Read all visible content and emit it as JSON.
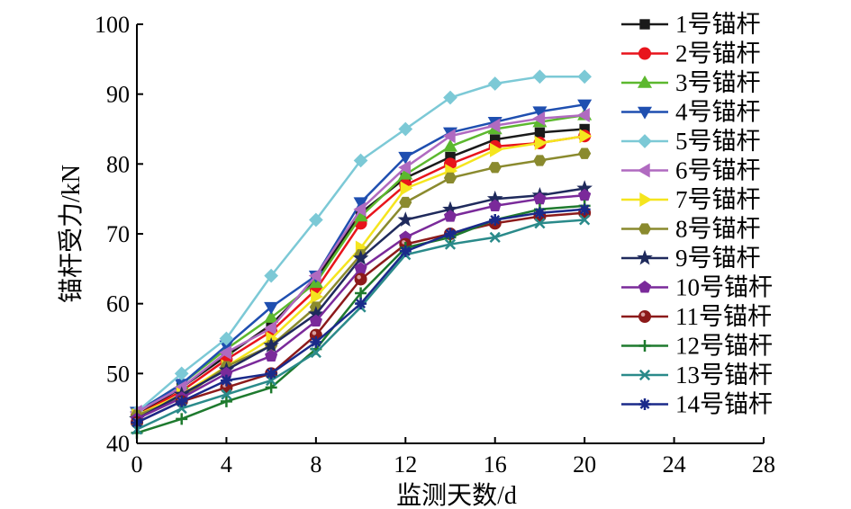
{
  "chart_data": {
    "type": "line",
    "xlabel": "监测天数/d",
    "ylabel": "锚杆受力/kN",
    "xlim": [
      0,
      28
    ],
    "ylim": [
      40,
      100
    ],
    "xticks": [
      0,
      4,
      8,
      12,
      16,
      20,
      24,
      28
    ],
    "yticks": [
      40,
      50,
      60,
      70,
      80,
      90,
      100
    ],
    "grid": false,
    "legend": "right",
    "x": [
      0,
      2,
      4,
      6,
      8,
      10,
      12,
      14,
      16,
      18,
      20
    ],
    "series": [
      {
        "name": "1号锚杆",
        "color": "#1a1a1a",
        "marker": "square",
        "values": [
          44.0,
          48.0,
          52.5,
          57.0,
          63.5,
          73.0,
          78.0,
          81.0,
          83.5,
          84.5,
          85.0
        ]
      },
      {
        "name": "2号锚杆",
        "color": "#e8141c",
        "marker": "circle",
        "values": [
          44.0,
          47.5,
          52.0,
          56.0,
          62.0,
          71.5,
          77.0,
          80.0,
          82.5,
          83.0,
          84.0
        ]
      },
      {
        "name": "3号锚杆",
        "color": "#5cb82e",
        "marker": "triangle-up",
        "values": [
          44.5,
          48.5,
          53.5,
          58.0,
          63.0,
          72.5,
          78.5,
          82.5,
          85.0,
          86.0,
          87.0
        ]
      },
      {
        "name": "4号锚杆",
        "color": "#1f4fb0",
        "marker": "triangle-down",
        "values": [
          44.5,
          48.5,
          54.0,
          59.5,
          64.0,
          74.5,
          81.0,
          84.5,
          86.0,
          87.5,
          88.5
        ]
      },
      {
        "name": "5号锚杆",
        "color": "#7cc9d6",
        "marker": "diamond",
        "values": [
          44.5,
          50.0,
          55.0,
          64.0,
          72.0,
          80.5,
          85.0,
          89.5,
          91.5,
          92.5,
          92.5
        ]
      },
      {
        "name": "6号锚杆",
        "color": "#b06ac0",
        "marker": "triangle-left",
        "values": [
          44.5,
          48.0,
          53.0,
          56.5,
          64.0,
          73.5,
          79.5,
          84.0,
          85.5,
          86.5,
          87.0
        ]
      },
      {
        "name": "7号锚杆",
        "color": "#f5e51e",
        "marker": "triangle-right",
        "values": [
          44.0,
          47.0,
          51.0,
          55.0,
          61.0,
          68.0,
          76.5,
          79.0,
          82.0,
          83.0,
          84.0
        ]
      },
      {
        "name": "8号锚杆",
        "color": "#8a8a2e",
        "marker": "hexagon",
        "values": [
          44.0,
          46.5,
          51.0,
          54.0,
          59.5,
          67.0,
          74.5,
          78.0,
          79.5,
          80.5,
          81.5
        ]
      },
      {
        "name": "9号锚杆",
        "color": "#1f2a5c",
        "marker": "star",
        "values": [
          43.5,
          47.0,
          50.5,
          54.0,
          58.5,
          66.5,
          72.0,
          73.5,
          75.0,
          75.5,
          76.5
        ]
      },
      {
        "name": "10号锚杆",
        "color": "#7a2a9a",
        "marker": "pentagon",
        "values": [
          43.5,
          46.5,
          50.0,
          52.5,
          57.5,
          65.0,
          69.5,
          72.5,
          74.0,
          75.0,
          75.5
        ]
      },
      {
        "name": "11号锚杆",
        "color": "#8c1a1a",
        "marker": "ball",
        "values": [
          43.0,
          46.0,
          48.0,
          50.0,
          55.5,
          63.5,
          68.5,
          70.0,
          71.5,
          72.5,
          73.0
        ]
      },
      {
        "name": "12号锚杆",
        "color": "#1e7a2e",
        "marker": "plus",
        "values": [
          41.5,
          43.5,
          46.0,
          48.0,
          53.5,
          61.5,
          68.0,
          69.5,
          72.0,
          73.5,
          74.0
        ]
      },
      {
        "name": "13号锚杆",
        "color": "#2a8a8a",
        "marker": "cross",
        "values": [
          42.0,
          45.0,
          47.0,
          49.0,
          53.0,
          59.5,
          67.0,
          68.5,
          69.5,
          71.5,
          72.0
        ]
      },
      {
        "name": "14号锚杆",
        "color": "#1a2a8a",
        "marker": "asterisk",
        "values": [
          43.0,
          46.0,
          49.0,
          50.0,
          54.5,
          60.0,
          67.5,
          70.0,
          72.0,
          73.0,
          73.5
        ]
      }
    ]
  }
}
